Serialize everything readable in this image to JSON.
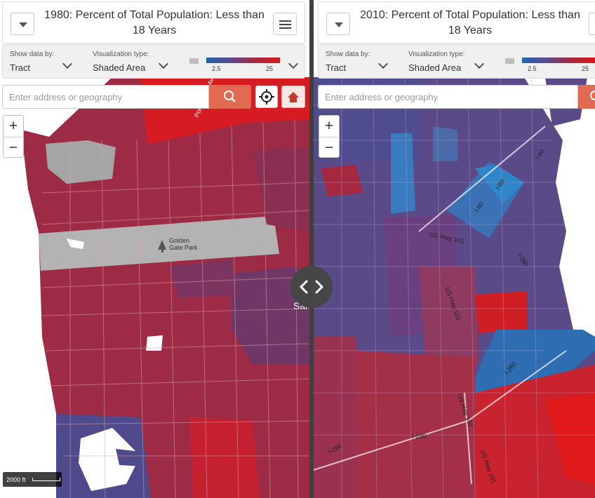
{
  "left": {
    "title": "1980: Percent of Total Population: Less than 18 Years",
    "show_data_by_label": "Show data by:",
    "show_data_by_value": "Tract",
    "viz_type_label": "Visualization type:",
    "viz_type_value": "Shaded Area",
    "legend_min": "2.5",
    "legend_max": "25",
    "search_placeholder": "Enter address or geography",
    "zoom_in": "+",
    "zoom_out": "−",
    "scale_label": "2000 ft",
    "map_labels": {
      "park": "Golden Gate Park",
      "city": "San Francisco",
      "street": "Point Lobos Av"
    }
  },
  "right": {
    "title": "2010: Percent of Total Population: Less than 18 Years",
    "show_data_by_label": "Show data by:",
    "show_data_by_value": "Tract",
    "viz_type_label": "Visualization type:",
    "viz_type_value": "Shaded Area",
    "legend_min": "2.5",
    "legend_max": "25",
    "search_placeholder": "Enter address or geography",
    "zoom_in": "+",
    "zoom_out": "−",
    "map_labels": {
      "hwy_101": "US Hwy 101",
      "i80_a": "I-80",
      "i80_b": "I-80",
      "i80_c": "I-80",
      "i280_a": "I-280",
      "i280_b": "I-280",
      "i280_c": "I-280",
      "i280_d": "I-280",
      "hwy_101_b": "US Hwy 101",
      "hwy_101_c": "US Hwy 101",
      "hwy_101_d": "US Hwy 101"
    }
  },
  "colors": {
    "accent": "#e06a52",
    "low": "#2166ac",
    "high": "#d7191c",
    "no_data": "#bdbdbd"
  },
  "icons": {
    "swipe": "chevron-left-right-icon",
    "search": "search-icon",
    "locate": "crosshair-icon",
    "home": "home-icon",
    "menu": "hamburger-menu-icon",
    "dropdown": "caret-down-icon"
  }
}
